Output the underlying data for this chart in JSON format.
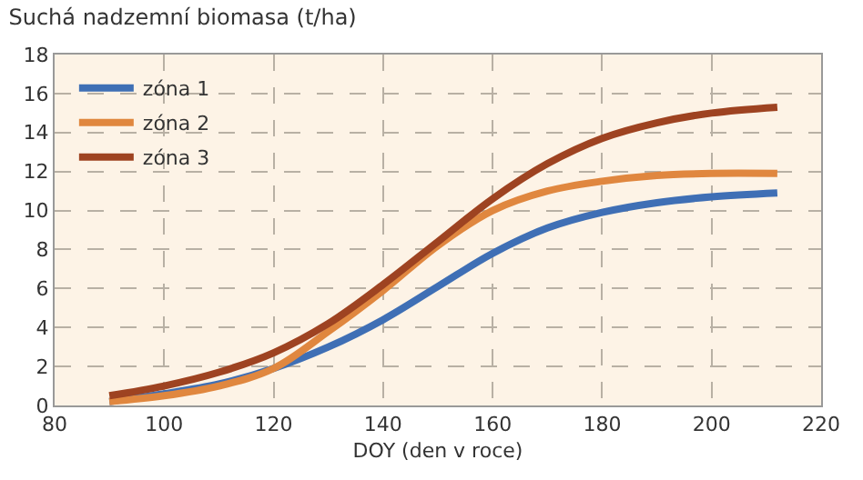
{
  "chart_data": {
    "type": "line",
    "title": "Suchá nadzemní biomasa (t/ha)",
    "xlabel": "DOY (den v roce)",
    "x": [
      90,
      100,
      110,
      120,
      130,
      140,
      150,
      160,
      170,
      180,
      190,
      200,
      212
    ],
    "series": [
      {
        "name": "zóna 1",
        "color": "#3f6fb5",
        "values": [
          0.2,
          0.6,
          1.1,
          1.9,
          3.0,
          4.4,
          6.1,
          7.8,
          9.1,
          9.9,
          10.4,
          10.7,
          10.9
        ]
      },
      {
        "name": "zóna 2",
        "color": "#e0873f",
        "values": [
          0.2,
          0.5,
          1.0,
          1.9,
          3.8,
          5.9,
          8.2,
          10.0,
          11.0,
          11.5,
          11.8,
          11.9,
          11.9
        ]
      },
      {
        "name": "zóna 3",
        "color": "#9e4321",
        "values": [
          0.5,
          1.0,
          1.7,
          2.7,
          4.2,
          6.2,
          8.4,
          10.6,
          12.4,
          13.7,
          14.5,
          15.0,
          15.3
        ]
      }
    ],
    "xlim": [
      80,
      220
    ],
    "xticks": [
      80,
      100,
      120,
      140,
      160,
      180,
      200,
      220
    ],
    "ylim": [
      0,
      18
    ],
    "yticks": [
      0,
      2,
      4,
      6,
      8,
      10,
      12,
      14,
      16,
      18
    ],
    "grid": true,
    "legend": "top left",
    "marker": "none",
    "line_style": "solid"
  }
}
